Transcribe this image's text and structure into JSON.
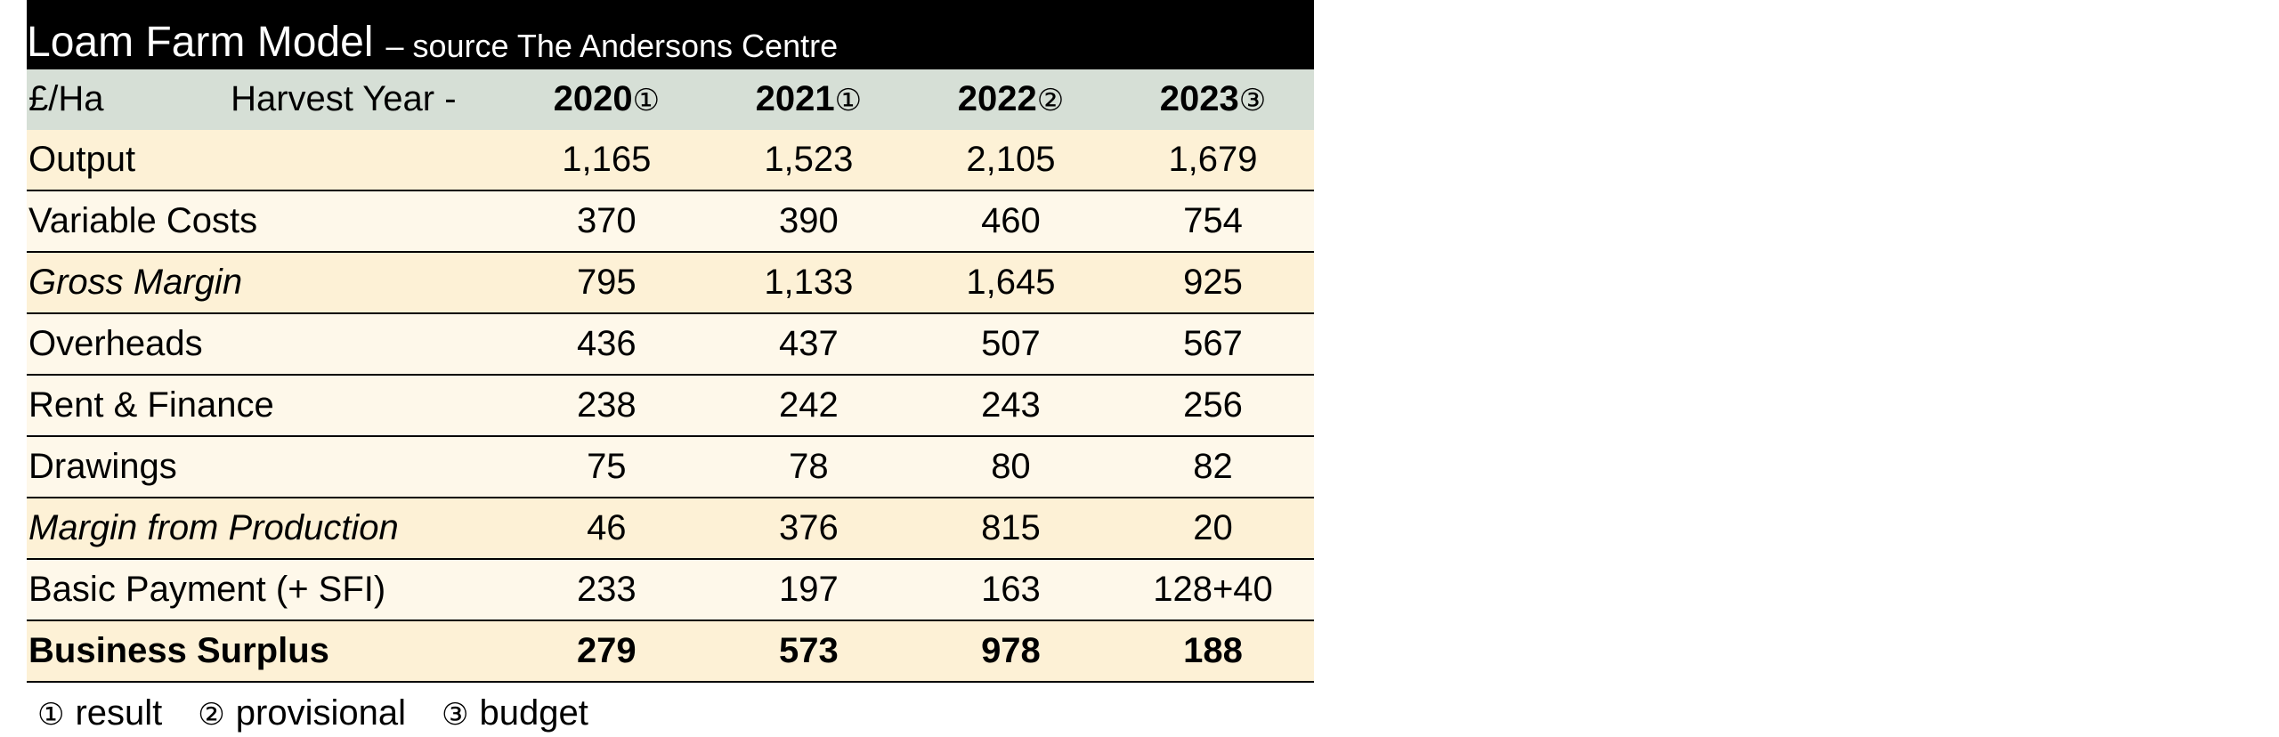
{
  "title": {
    "main": "Loam Farm Model",
    "sub": "– source The Andersons Centre"
  },
  "header": {
    "unit": "£/Ha",
    "harvest_label": "Harvest Year -",
    "years": [
      {
        "year": "2020",
        "mark": "①"
      },
      {
        "year": "2021",
        "mark": "①"
      },
      {
        "year": "2022",
        "mark": "②"
      },
      {
        "year": "2023",
        "mark": "③"
      }
    ]
  },
  "rows": [
    {
      "label": "Output",
      "values": [
        "1,165",
        "1,523",
        "2,105",
        "1,679"
      ]
    },
    {
      "label": "Variable Costs",
      "values": [
        "370",
        "390",
        "460",
        "754"
      ]
    },
    {
      "label": "Gross Margin",
      "values": [
        "795",
        "1,133",
        "1,645",
        "925"
      ]
    },
    {
      "label": "Overheads",
      "values": [
        "436",
        "437",
        "507",
        "567"
      ]
    },
    {
      "label": "Rent & Finance",
      "values": [
        "238",
        "242",
        "243",
        "256"
      ]
    },
    {
      "label": "Drawings",
      "values": [
        "75",
        "78",
        "80",
        "82"
      ]
    },
    {
      "label": "Margin from Production",
      "values": [
        "46",
        "376",
        "815",
        "20"
      ]
    },
    {
      "label": "Basic Payment (+ SFI)",
      "values": [
        "233",
        "197",
        "163",
        "128+40"
      ]
    },
    {
      "label": "Business Surplus",
      "values": [
        "279",
        "573",
        "978",
        "188"
      ]
    }
  ],
  "footnotes": [
    {
      "symbol": "①",
      "text": "result"
    },
    {
      "symbol": "②",
      "text": "provisional"
    },
    {
      "symbol": "③",
      "text": "budget"
    }
  ],
  "colors": {
    "title_bg": "#000000",
    "header_bg": "#d6dfd6",
    "row_shade_a": "#fdf1d6",
    "row_shade_b": "#fef8ea"
  }
}
